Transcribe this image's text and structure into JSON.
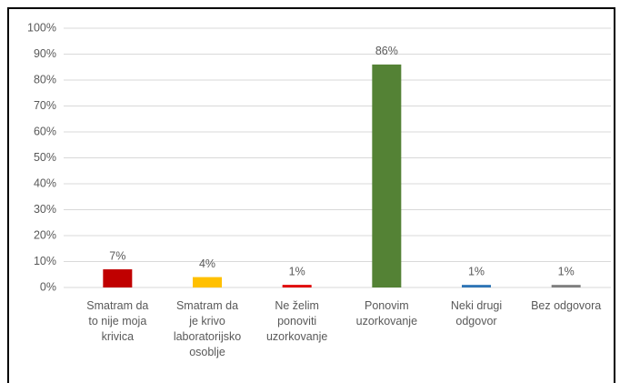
{
  "chart_data": {
    "type": "bar",
    "categories": [
      "Smatram da\nto nije moja\nkrivica",
      "Smatram da\nje krivo\nlaboratorijsko\nosoblje",
      "Ne želim\nponoviti\nuzorkovanje",
      "Ponovim\nuzorkovanje",
      "Neki drugi\nodgovor",
      "Bez odgovora"
    ],
    "values": [
      7,
      4,
      1,
      86,
      1,
      1
    ],
    "value_labels": [
      "7%",
      "4%",
      "1%",
      "86%",
      "1%",
      "1%"
    ],
    "colors": [
      "#c00000",
      "#ffc000",
      "#e00000",
      "#548235",
      "#2e75b6",
      "#7f7f7f"
    ],
    "ylim": [
      0,
      100
    ],
    "yticks": [
      {
        "value": 0,
        "label": "0%"
      },
      {
        "value": 10,
        "label": "10%"
      },
      {
        "value": 20,
        "label": "20%"
      },
      {
        "value": 30,
        "label": "30%"
      },
      {
        "value": 40,
        "label": "40%"
      },
      {
        "value": 50,
        "label": "50%"
      },
      {
        "value": 60,
        "label": "60%"
      },
      {
        "value": 70,
        "label": "70%"
      },
      {
        "value": 80,
        "label": "80%"
      },
      {
        "value": 90,
        "label": "90%"
      },
      {
        "value": 100,
        "label": "100%"
      }
    ],
    "grid": true
  }
}
